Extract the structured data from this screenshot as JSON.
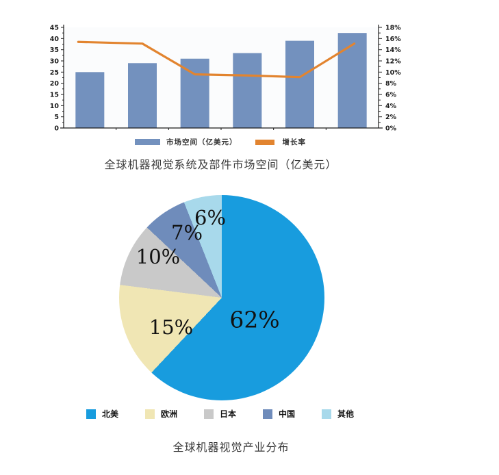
{
  "page": {
    "background": "#ffffff"
  },
  "chart_data": [
    {
      "type": "bar+line",
      "caption": "全球机器视觉系统及部件市场空间（亿美元）",
      "categories": [
        "",
        "",
        "",
        "",
        "",
        ""
      ],
      "series": [
        {
          "name": "市场空间（亿美元）",
          "type": "bar",
          "axis": "left",
          "color": "#7391BE",
          "values": [
            25,
            29,
            31,
            33.5,
            39,
            42.5
          ]
        },
        {
          "name": "增长率",
          "type": "line",
          "axis": "right",
          "color": "#E2842F",
          "unit": "%",
          "values": [
            15.4,
            15.1,
            9.6,
            9.4,
            9.1,
            15.1
          ]
        }
      ],
      "left_axis": {
        "min": 0,
        "max": 45,
        "step": 5
      },
      "right_axis": {
        "min": 0,
        "max": 18,
        "step": 2,
        "suffix": "%"
      },
      "grid": false,
      "legend_position": "bottom"
    },
    {
      "type": "pie",
      "caption": "全球机器视觉产业分布",
      "start_angle_deg": 0,
      "direction": "clockwise",
      "legend_position": "bottom",
      "slices": [
        {
          "label": "北美",
          "value": 62,
          "color": "#189CDE"
        },
        {
          "label": "欧洲",
          "value": 15,
          "color": "#F0E6B4"
        },
        {
          "label": "日本",
          "value": 10,
          "color": "#C9C9C9"
        },
        {
          "label": "中国",
          "value": 7,
          "color": "#6F8CBB"
        },
        {
          "label": "其他",
          "value": 6,
          "color": "#A8D9EB"
        }
      ]
    }
  ]
}
